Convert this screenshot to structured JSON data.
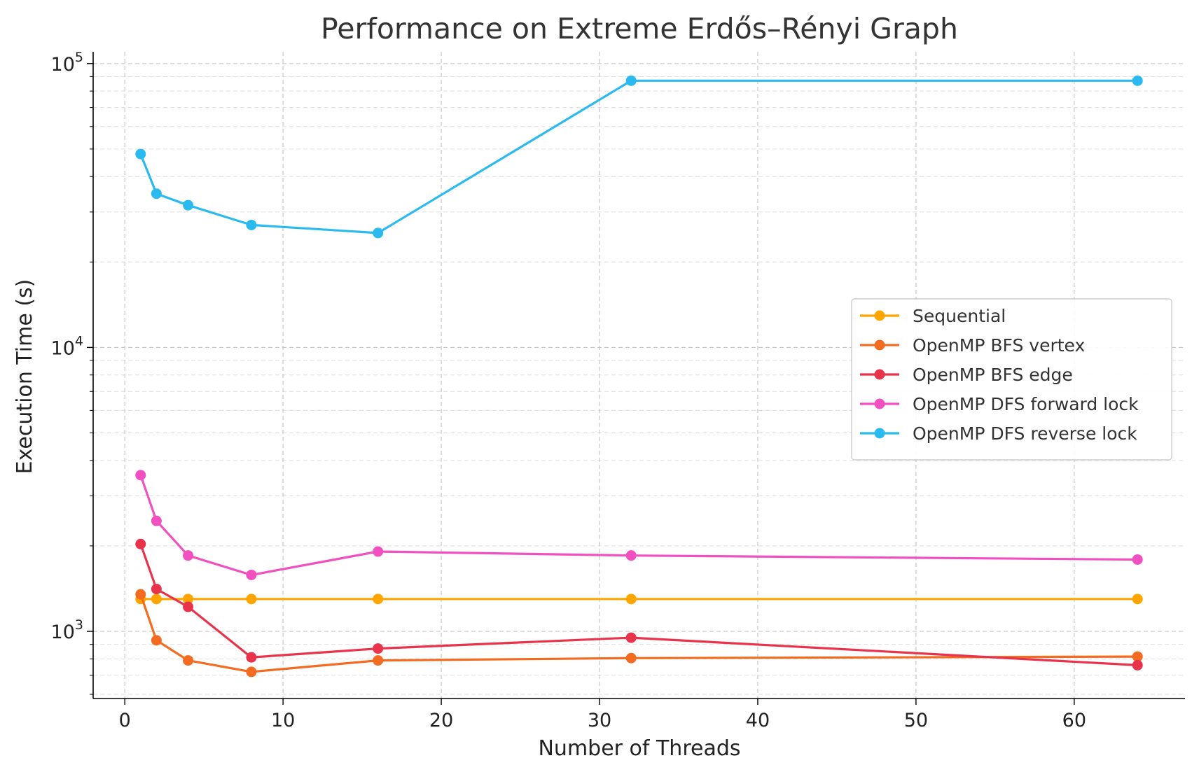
{
  "chart_data": {
    "type": "line",
    "title": "Performance on Extreme Erdős–Rényi Graph",
    "xlabel": "Number of Threads",
    "ylabel": "Execution Time (s)",
    "xlim": [
      -2,
      67
    ],
    "ylim": [
      580,
      110000
    ],
    "yscale": "log",
    "grid": true,
    "legend_position": "center-right",
    "x_ticks": [
      0,
      10,
      20,
      30,
      40,
      50,
      60
    ],
    "y_ticks": [
      {
        "value": 1000,
        "base": "10",
        "exp": "3"
      },
      {
        "value": 10000,
        "base": "10",
        "exp": "4"
      },
      {
        "value": 100000,
        "base": "10",
        "exp": "5"
      }
    ],
    "x": [
      1,
      2,
      4,
      8,
      16,
      32,
      64
    ],
    "series": [
      {
        "name": "Sequential",
        "color": "#FFA500",
        "values": [
          1300,
          1300,
          1300,
          1300,
          1300,
          1300,
          1300
        ]
      },
      {
        "name": "OpenMP BFS vertex",
        "color": "#F26B21",
        "values": [
          1350,
          930,
          790,
          720,
          790,
          805,
          815
        ]
      },
      {
        "name": "OpenMP BFS edge",
        "color": "#E8334A",
        "values": [
          2030,
          1410,
          1220,
          810,
          870,
          950,
          760
        ]
      },
      {
        "name": "OpenMP DFS forward lock",
        "color": "#F050C0",
        "values": [
          3550,
          2450,
          1850,
          1580,
          1910,
          1850,
          1790
        ]
      },
      {
        "name": "OpenMP DFS reverse lock",
        "color": "#2BBAF0",
        "values": [
          48000,
          34800,
          31700,
          27000,
          25300,
          87000,
          87000
        ]
      }
    ]
  }
}
